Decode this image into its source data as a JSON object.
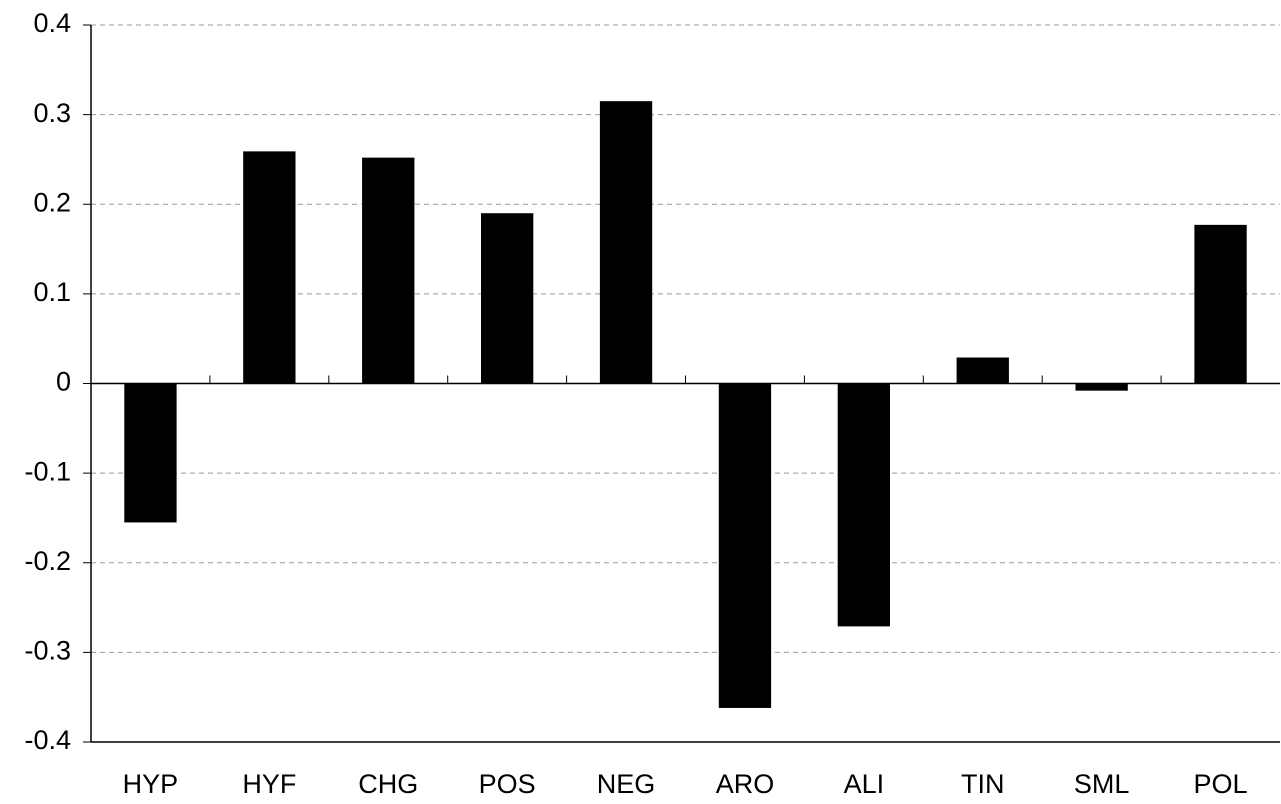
{
  "chart_data": {
    "type": "bar",
    "categories": [
      "HYP",
      "HYF",
      "CHG",
      "POS",
      "NEG",
      "ARO",
      "ALI",
      "TIN",
      "SML",
      "POL"
    ],
    "values": [
      -0.155,
      0.259,
      0.252,
      0.19,
      0.315,
      -0.362,
      -0.271,
      0.029,
      -0.008,
      0.177
    ],
    "color": "#000000",
    "ylim": [
      -0.4,
      0.4
    ],
    "yticks": [
      -0.4,
      -0.3,
      -0.2,
      -0.1,
      0,
      0.1,
      0.2,
      0.3,
      0.4
    ],
    "grid": true
  }
}
